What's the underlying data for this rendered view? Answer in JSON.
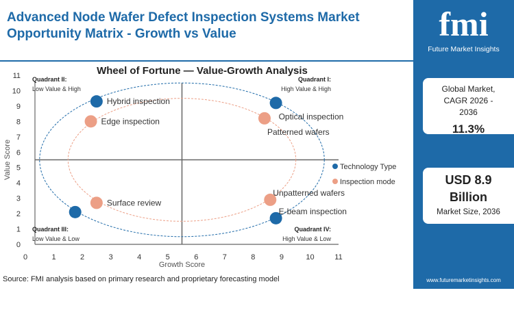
{
  "header": {
    "title": "Advanced Node Wafer Defect Inspection Systems Market Opportunity Matrix - Growth vs Value"
  },
  "brand": {
    "logo_text": "fmi",
    "name": "Future Market Insights",
    "url": "www.futuremarketinsights.com",
    "color": "#1e6aa8"
  },
  "cards": [
    {
      "label": "Global Market, CAGR 2026 - 2036",
      "value": "11.3%"
    },
    {
      "value": "USD 8.9 Billion",
      "label": "Market Size, 2036"
    }
  ],
  "source": "Source: FMI analysis based on primary research and proprietary forecasting model",
  "chart_data": {
    "type": "scatter",
    "title": "Wheel of Fortune — Value-Growth  Analysis",
    "xlabel": "Growth Score",
    "ylabel": "Value Score",
    "xlim": [
      0,
      11
    ],
    "ylim": [
      0,
      11
    ],
    "xticks": [
      0,
      1,
      2,
      3,
      4,
      5,
      6,
      7,
      8,
      9,
      10,
      11
    ],
    "yticks": [
      0,
      1,
      2,
      3,
      4,
      5,
      6,
      7,
      8,
      9,
      10,
      11
    ],
    "legend_position": "right",
    "quadrants": [
      {
        "name": "Quadrant II:",
        "desc": "Low Value & High",
        "position": "top-left"
      },
      {
        "name": "Quadrant I:",
        "desc": "High Value & High",
        "position": "top-right"
      },
      {
        "name": "Quadrant III:",
        "desc": "Low Value & Low",
        "position": "bottom-left"
      },
      {
        "name": "Quadrant IV:",
        "desc": "High Value & Low",
        "position": "bottom-right"
      }
    ],
    "divider": {
      "x": 5.5,
      "y": 5.5
    },
    "series": [
      {
        "name": "Technology Type",
        "color": "#1e6aa8",
        "ring": {
          "cx": 5.5,
          "cy": 5.5,
          "rx": 5,
          "ry": 5
        },
        "points": [
          {
            "label": "Hybrid inspection",
            "x": 2.5,
            "y": 9.3
          },
          {
            "label": "Optical inspection",
            "x": 8.8,
            "y": 9.2
          },
          {
            "label": "",
            "x": 1.75,
            "y": 2.1
          },
          {
            "label": "E-beam inspection",
            "x": 8.8,
            "y": 1.7
          }
        ]
      },
      {
        "name": "Inspection mode",
        "color": "#ec9f86",
        "ring": {
          "cx": 5.5,
          "cy": 5.5,
          "rx": 4,
          "ry": 4
        },
        "points": [
          {
            "label": "Edge inspection",
            "x": 2.3,
            "y": 8.0
          },
          {
            "label": "Patterned wafers",
            "x": 8.4,
            "y": 8.2
          },
          {
            "label": "Surface review",
            "x": 2.5,
            "y": 2.7
          },
          {
            "label": "Unpatterned wafers",
            "x": 8.6,
            "y": 2.9
          }
        ]
      }
    ]
  }
}
